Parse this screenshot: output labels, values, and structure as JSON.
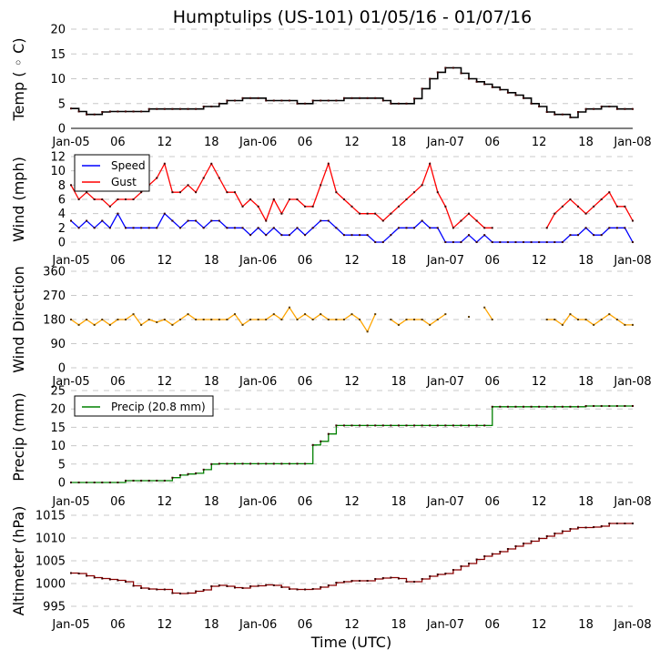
{
  "figure": {
    "title": "Humptulips (US-101) 01/05/16 - 01/07/16",
    "xlabel": "Time (UTC)"
  },
  "chart_data": [
    {
      "id": "temp",
      "type": "line",
      "title": "",
      "ylabel": "Temp (°C)",
      "ylabel_display": "Temp ( ◦ C)",
      "xlabel": "",
      "x_unit": "hours since Jan-05 00:00 UTC",
      "xlim": [
        0,
        72
      ],
      "x_ticks": [
        0,
        6,
        12,
        18,
        24,
        30,
        36,
        42,
        48,
        54,
        60,
        66,
        72
      ],
      "x_tick_labels": [
        "Jan-05",
        "06",
        "12",
        "18",
        "Jan-06",
        "06",
        "12",
        "18",
        "Jan-07",
        "06",
        "12",
        "18",
        "Jan-08"
      ],
      "ylim": [
        0,
        20
      ],
      "y_ticks": [
        0,
        5,
        10,
        15,
        20
      ],
      "grid": true,
      "legend": null,
      "series": [
        {
          "name": "Temp",
          "color": "#000000",
          "x": [
            0,
            1,
            2,
            3,
            4,
            5,
            6,
            7,
            8,
            9,
            10,
            11,
            12,
            13,
            14,
            15,
            16,
            17,
            18,
            19,
            20,
            21,
            22,
            23,
            24,
            25,
            26,
            27,
            28,
            29,
            30,
            31,
            32,
            33,
            34,
            35,
            36,
            37,
            38,
            39,
            40,
            41,
            42,
            43,
            44,
            45,
            46,
            47,
            48,
            49,
            50,
            51,
            52,
            53,
            54,
            55,
            56,
            57,
            58,
            59,
            60,
            61,
            62,
            63,
            64,
            65,
            66,
            67,
            68,
            69,
            70,
            71,
            72
          ],
          "values": [
            4.0,
            3.4,
            2.8,
            2.8,
            3.3,
            3.4,
            3.4,
            3.4,
            3.4,
            3.4,
            3.9,
            3.9,
            3.9,
            3.9,
            3.9,
            3.9,
            3.9,
            4.4,
            4.4,
            5.0,
            5.6,
            5.6,
            6.1,
            6.1,
            6.1,
            5.6,
            5.6,
            5.6,
            5.6,
            5.0,
            5.0,
            5.6,
            5.6,
            5.6,
            5.6,
            6.1,
            6.1,
            6.1,
            6.1,
            6.1,
            5.6,
            5.0,
            5.0,
            5.0,
            6.0,
            8.0,
            10.0,
            11.3,
            12.2,
            12.2,
            11.1,
            10.0,
            9.4,
            8.9,
            8.3,
            7.8,
            7.2,
            6.7,
            6.1,
            5.0,
            4.4,
            3.3,
            2.8,
            2.8,
            2.2,
            3.3,
            3.9,
            3.9,
            4.4,
            4.4,
            3.9,
            3.9,
            3.9
          ]
        }
      ]
    },
    {
      "id": "wind",
      "type": "line",
      "ylabel": "Wind (mph)",
      "xlim": [
        0,
        72
      ],
      "x_ticks": [
        0,
        6,
        12,
        18,
        24,
        30,
        36,
        42,
        48,
        54,
        60,
        66,
        72
      ],
      "x_tick_labels": [
        "Jan-05",
        "06",
        "12",
        "18",
        "Jan-06",
        "06",
        "12",
        "18",
        "Jan-07",
        "06",
        "12",
        "18",
        "Jan-08"
      ],
      "ylim": [
        0,
        12
      ],
      "y_ticks": [
        0,
        2,
        4,
        6,
        8,
        10,
        12
      ],
      "grid": true,
      "legend": {
        "placement": "top-left",
        "entries": [
          "Speed",
          "Gust"
        ]
      },
      "series": [
        {
          "name": "Speed",
          "color": "#0000ff",
          "x": [
            0,
            1,
            2,
            3,
            4,
            5,
            6,
            7,
            8,
            9,
            10,
            11,
            12,
            13,
            14,
            15,
            16,
            17,
            18,
            19,
            20,
            21,
            22,
            23,
            24,
            25,
            26,
            27,
            28,
            29,
            30,
            31,
            32,
            33,
            34,
            35,
            36,
            37,
            38,
            39,
            40,
            41,
            42,
            43,
            44,
            45,
            46,
            47,
            48,
            49,
            50,
            51,
            52,
            53,
            54,
            55,
            56,
            57,
            58,
            59,
            60,
            61,
            62,
            63,
            64,
            65,
            66,
            67,
            68,
            69,
            70,
            71,
            72
          ],
          "values": [
            3,
            2,
            3,
            2,
            3,
            2,
            4,
            2,
            2,
            2,
            2,
            2,
            4,
            3,
            2,
            3,
            3,
            2,
            3,
            3,
            2,
            2,
            2,
            1,
            2,
            1,
            2,
            1,
            1,
            2,
            1,
            2,
            3,
            3,
            2,
            1,
            1,
            1,
            1,
            0,
            0,
            1,
            2,
            2,
            2,
            3,
            2,
            2,
            0,
            0,
            0,
            1,
            0,
            1,
            0,
            0,
            0,
            0,
            0,
            0,
            0,
            0,
            0,
            0,
            1,
            1,
            2,
            1,
            1,
            2,
            2,
            2,
            0
          ]
        },
        {
          "name": "Gust",
          "color": "#ff0000",
          "x": [
            0,
            1,
            2,
            3,
            4,
            5,
            6,
            7,
            8,
            9,
            10,
            11,
            12,
            13,
            14,
            15,
            16,
            17,
            18,
            19,
            20,
            21,
            22,
            23,
            24,
            25,
            26,
            27,
            28,
            29,
            30,
            31,
            32,
            33,
            34,
            35,
            36,
            37,
            38,
            39,
            40,
            41,
            42,
            43,
            44,
            45,
            46,
            47,
            48,
            49,
            50,
            51,
            52,
            53,
            54,
            55,
            56,
            57,
            58,
            59,
            60,
            61,
            62,
            63,
            64,
            65,
            66,
            67,
            68,
            69,
            70,
            71,
            72
          ],
          "values": [
            8,
            6,
            7,
            6,
            6,
            5,
            6,
            6,
            6,
            7,
            8,
            9,
            11,
            7,
            7,
            8,
            7,
            9,
            11,
            9,
            7,
            7,
            5,
            6,
            5,
            3,
            6,
            4,
            6,
            6,
            5,
            5,
            8,
            11,
            7,
            6,
            5,
            4,
            4,
            4,
            3,
            4,
            5,
            6,
            7,
            8,
            11,
            7,
            5,
            2,
            3,
            4,
            3,
            2,
            2,
            null,
            null,
            null,
            null,
            null,
            null,
            2,
            4,
            5,
            6,
            5,
            4,
            5,
            6,
            7,
            5,
            5,
            3
          ]
        }
      ]
    },
    {
      "id": "wind_direction",
      "type": "line",
      "ylabel": "Wind Direction",
      "xlim": [
        0,
        72
      ],
      "x_ticks": [
        0,
        6,
        12,
        18,
        24,
        30,
        36,
        42,
        48,
        54,
        60,
        66,
        72
      ],
      "x_tick_labels": [
        "Jan-05",
        "06",
        "12",
        "18",
        "Jan-06",
        "06",
        "12",
        "18",
        "Jan-07",
        "06",
        "12",
        "18",
        "Jan-08"
      ],
      "ylim": [
        0,
        360
      ],
      "y_ticks": [
        0,
        90,
        180,
        270,
        360
      ],
      "grid": true,
      "legend": null,
      "series": [
        {
          "name": "Direction",
          "color": "#ffa500",
          "x": [
            0,
            1,
            2,
            3,
            4,
            5,
            6,
            7,
            8,
            9,
            10,
            11,
            12,
            13,
            14,
            15,
            16,
            17,
            18,
            19,
            20,
            21,
            22,
            23,
            24,
            25,
            26,
            27,
            28,
            29,
            30,
            31,
            32,
            33,
            34,
            35,
            36,
            37,
            38,
            39,
            40,
            41,
            42,
            43,
            44,
            45,
            46,
            47,
            48,
            49,
            50,
            51,
            52,
            53,
            54,
            55,
            56,
            57,
            58,
            59,
            60,
            61,
            62,
            63,
            64,
            65,
            66,
            67,
            68,
            69,
            70,
            71,
            72
          ],
          "values": [
            180,
            160,
            180,
            160,
            180,
            160,
            180,
            180,
            200,
            160,
            180,
            170,
            180,
            160,
            180,
            200,
            180,
            180,
            180,
            180,
            180,
            200,
            160,
            180,
            180,
            180,
            200,
            180,
            225,
            180,
            200,
            180,
            200,
            180,
            180,
            180,
            200,
            180,
            135,
            200,
            null,
            180,
            160,
            180,
            180,
            180,
            160,
            180,
            200,
            null,
            null,
            190,
            null,
            225,
            180,
            null,
            null,
            null,
            null,
            null,
            null,
            180,
            180,
            160,
            200,
            180,
            180,
            160,
            180,
            200,
            180,
            160,
            160
          ]
        }
      ]
    },
    {
      "id": "precip",
      "type": "line",
      "ylabel": "Precip (mm)",
      "xlim": [
        0,
        72
      ],
      "x_ticks": [
        0,
        6,
        12,
        18,
        24,
        30,
        36,
        42,
        48,
        54,
        60,
        66,
        72
      ],
      "x_tick_labels": [
        "Jan-05",
        "06",
        "12",
        "18",
        "Jan-06",
        "06",
        "12",
        "18",
        "Jan-07",
        "06",
        "12",
        "18",
        "Jan-08"
      ],
      "ylim": [
        0,
        25
      ],
      "y_ticks": [
        0,
        5,
        10,
        15,
        20,
        25
      ],
      "grid": true,
      "legend": {
        "placement": "top-left",
        "entries": [
          "Precip (20.8 mm)"
        ]
      },
      "series": [
        {
          "name": "Precip (20.8 mm)",
          "color": "#008000",
          "x": [
            0,
            1,
            2,
            3,
            4,
            5,
            6,
            7,
            8,
            9,
            10,
            11,
            12,
            13,
            14,
            15,
            16,
            17,
            18,
            19,
            20,
            21,
            22,
            23,
            24,
            25,
            26,
            27,
            28,
            29,
            30,
            31,
            32,
            33,
            34,
            35,
            36,
            37,
            38,
            39,
            40,
            41,
            42,
            43,
            44,
            45,
            46,
            47,
            48,
            49,
            50,
            51,
            52,
            53,
            54,
            55,
            56,
            57,
            58,
            59,
            60,
            61,
            62,
            63,
            64,
            65,
            66,
            67,
            68,
            69,
            70,
            71,
            72
          ],
          "values": [
            0,
            0,
            0,
            0,
            0,
            0,
            0,
            0.5,
            0.5,
            0.5,
            0.5,
            0.5,
            0.5,
            1.3,
            2.0,
            2.3,
            2.5,
            3.5,
            5.0,
            5.1,
            5.1,
            5.1,
            5.1,
            5.1,
            5.1,
            5.1,
            5.1,
            5.1,
            5.1,
            5.1,
            5.1,
            10.2,
            11.2,
            13.2,
            15.5,
            15.5,
            15.5,
            15.5,
            15.5,
            15.5,
            15.5,
            15.5,
            15.5,
            15.5,
            15.5,
            15.5,
            15.5,
            15.5,
            15.5,
            15.5,
            15.5,
            15.5,
            15.5,
            15.5,
            20.6,
            20.6,
            20.6,
            20.6,
            20.6,
            20.6,
            20.6,
            20.6,
            20.6,
            20.6,
            20.6,
            20.6,
            20.8,
            20.8,
            20.8,
            20.8,
            20.8,
            20.8,
            20.8
          ]
        }
      ]
    },
    {
      "id": "altimeter",
      "type": "line",
      "ylabel": "Altimeter (hPa)",
      "xlim": [
        0,
        72
      ],
      "x_ticks": [
        0,
        6,
        12,
        18,
        24,
        30,
        36,
        42,
        48,
        54,
        60,
        66,
        72
      ],
      "x_tick_labels": [
        "Jan-05",
        "06",
        "12",
        "18",
        "Jan-06",
        "06",
        "12",
        "18",
        "Jan-07",
        "06",
        "12",
        "18",
        "Jan-08"
      ],
      "ylim": [
        994,
        1015
      ],
      "y_ticks": [
        995,
        1000,
        1005,
        1010,
        1015
      ],
      "grid": true,
      "legend": null,
      "series": [
        {
          "name": "Altimeter",
          "color": "#8b0000",
          "x": [
            0,
            1,
            2,
            3,
            4,
            5,
            6,
            7,
            8,
            9,
            10,
            11,
            12,
            13,
            14,
            15,
            16,
            17,
            18,
            19,
            20,
            21,
            22,
            23,
            24,
            25,
            26,
            27,
            28,
            29,
            30,
            31,
            32,
            33,
            34,
            35,
            36,
            37,
            38,
            39,
            40,
            41,
            42,
            43,
            44,
            45,
            46,
            47,
            48,
            49,
            50,
            51,
            52,
            53,
            54,
            55,
            56,
            57,
            58,
            59,
            60,
            61,
            62,
            63,
            64,
            65,
            66,
            67,
            68,
            69,
            70,
            71,
            72
          ],
          "values": [
            1002.3,
            1002.2,
            1001.7,
            1001.3,
            1001.1,
            1000.9,
            1000.7,
            1000.4,
            999.5,
            999.0,
            998.8,
            998.7,
            998.7,
            997.9,
            997.8,
            997.9,
            998.3,
            998.6,
            999.4,
            999.6,
            999.4,
            999.1,
            999.0,
            999.4,
            999.5,
            999.7,
            999.6,
            999.2,
            998.8,
            998.7,
            998.7,
            998.8,
            999.2,
            999.6,
            1000.2,
            1000.4,
            1000.6,
            1000.6,
            1000.6,
            1001.0,
            1001.2,
            1001.3,
            1001.1,
            1000.4,
            1000.4,
            1001.0,
            1001.6,
            1002.0,
            1002.2,
            1003.0,
            1003.8,
            1004.4,
            1005.3,
            1006.0,
            1006.5,
            1007.0,
            1007.6,
            1008.2,
            1008.8,
            1009.3,
            1009.9,
            1010.4,
            1011.0,
            1011.5,
            1012.0,
            1012.3,
            1012.3,
            1012.4,
            1012.6,
            1013.2,
            1013.2,
            1013.2,
            1013.2
          ]
        }
      ]
    }
  ]
}
